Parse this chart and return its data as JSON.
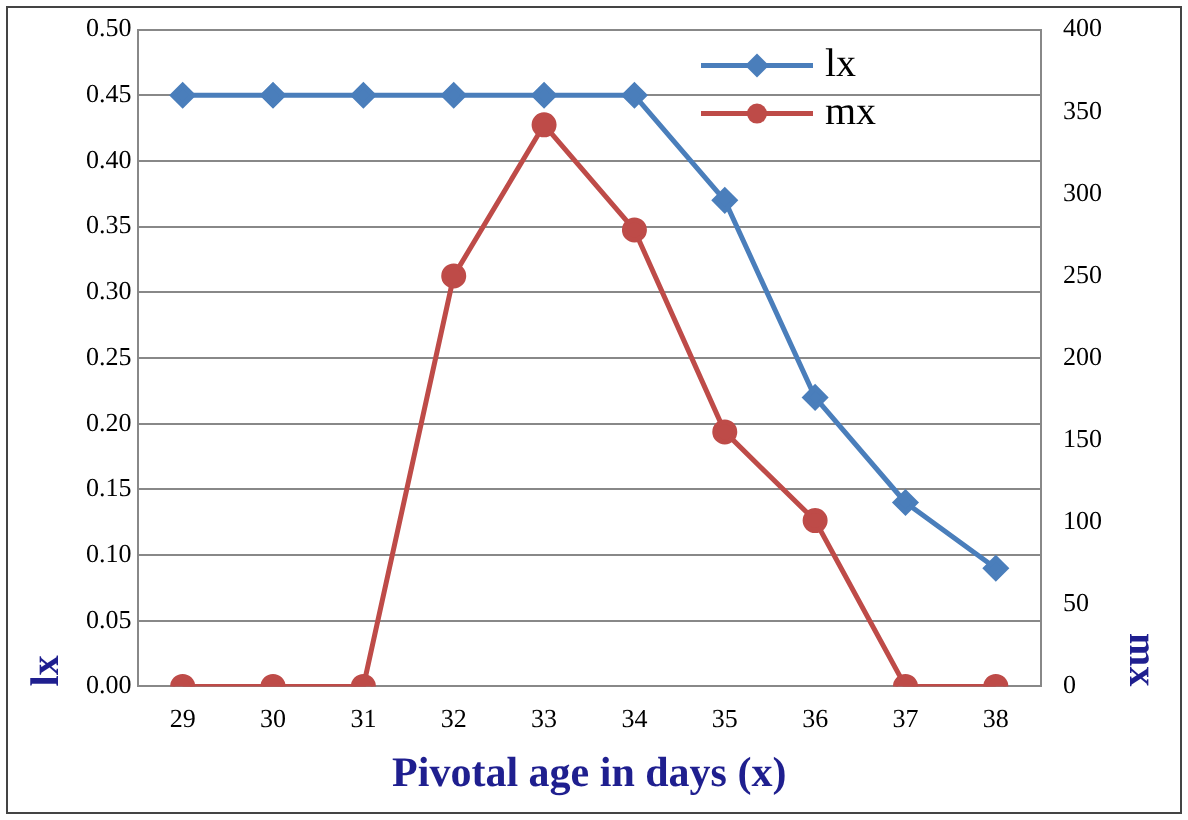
{
  "chart_data": {
    "type": "line",
    "xlabel": "Pivotal age in days (x)",
    "ylabel": "lx",
    "y2label": "mx",
    "categories": [
      "29",
      "30",
      "31",
      "32",
      "33",
      "34",
      "35",
      "36",
      "37",
      "38"
    ],
    "series": [
      {
        "name": "lx",
        "color": "#4a7ebb",
        "marker": "diamond",
        "values": [
          0.45,
          0.45,
          0.45,
          0.45,
          0.45,
          0.45,
          0.37,
          0.22,
          0.14,
          0.09
        ]
      },
      {
        "name": "mx",
        "color": "#be4b48",
        "marker": "circle",
        "axis": "y2",
        "values": [
          0,
          0,
          0,
          250,
          342,
          278,
          155,
          101,
          0,
          0
        ]
      }
    ],
    "ylim": [
      0,
      0.5
    ],
    "yticks": [
      {
        "value": 0,
        "label": "0.00"
      },
      {
        "value": 0.05,
        "label": "0.05"
      },
      {
        "value": 0.1,
        "label": "0.10"
      },
      {
        "value": 0.15,
        "label": "0.15"
      },
      {
        "value": 0.2,
        "label": "0.20"
      },
      {
        "value": 0.25,
        "label": "0.25"
      },
      {
        "value": 0.3,
        "label": "0.30"
      },
      {
        "value": 0.35,
        "label": "0.35"
      },
      {
        "value": 0.4,
        "label": "0.40"
      },
      {
        "value": 0.45,
        "label": "0.45"
      },
      {
        "value": 0.5,
        "label": "0.50"
      }
    ],
    "y2lim": [
      0,
      400
    ],
    "y2ticks": [
      0,
      50,
      100,
      150,
      200,
      250,
      300,
      350,
      400
    ],
    "grid": "y",
    "legend": "top right"
  }
}
